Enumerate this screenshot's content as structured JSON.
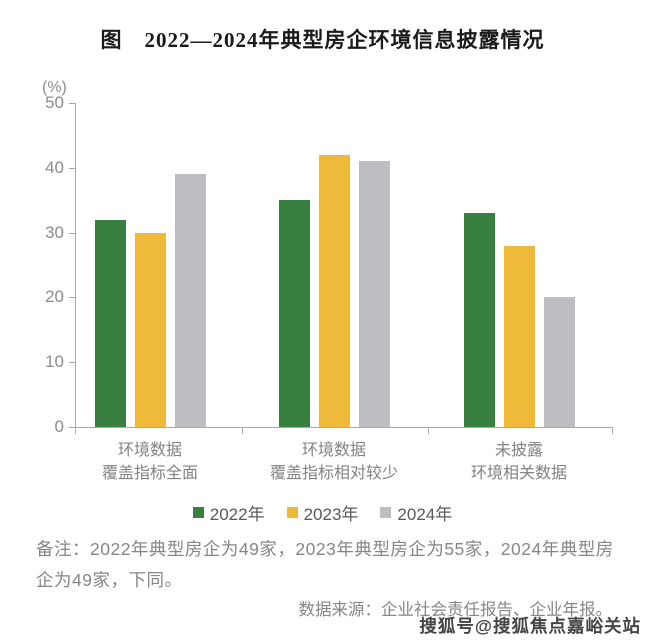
{
  "title": "图　2022—2024年典型房企环境信息披露情况",
  "chart": {
    "unit_label": "(%)",
    "y_ticks": [
      0,
      10,
      20,
      30,
      40,
      50
    ]
  },
  "chart_data": {
    "type": "bar",
    "title": "2022—2024年典型房企环境信息披露情况",
    "categories": [
      "环境数据\n覆盖指标全面",
      "环境数据\n覆盖指标相对较少",
      "未披露\n环境相关数据"
    ],
    "series": [
      {
        "name": "2022年",
        "color": "#38803F",
        "values": [
          32,
          35,
          33
        ]
      },
      {
        "name": "2023年",
        "color": "#EFBA3A",
        "values": [
          30,
          42,
          28
        ]
      },
      {
        "name": "2024年",
        "color": "#BDBEC2",
        "values": [
          39,
          41,
          20
        ]
      }
    ],
    "ylabel": "(%)",
    "ylim": [
      0,
      50
    ],
    "grid": false,
    "legend_position": "bottom"
  },
  "notes": {
    "remark": "备注：2022年典型房企为49家，2023年典型房企为55家，2024年典型房企为49家，下同。",
    "source": "数据来源：企业社会责任报告、企业年报。"
  },
  "watermark": "搜狐号@搜狐焦点嘉峪关站",
  "colors": {
    "axis": "#A9A9A9",
    "tick_text": "#8C8C8C",
    "category_text": "#828282",
    "legend_text": "#5A5A5A",
    "note_text": "#868686",
    "title_text": "#1A1A1A"
  }
}
